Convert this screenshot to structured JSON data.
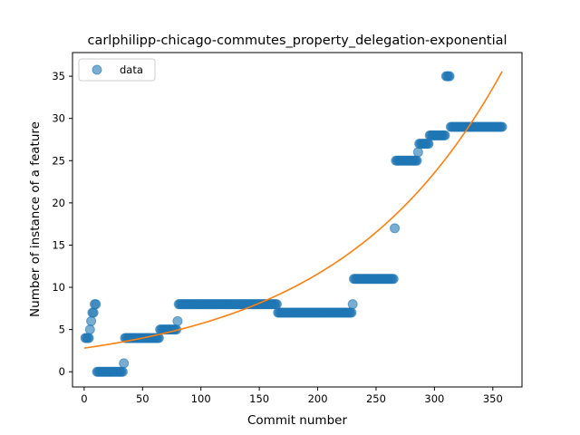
{
  "chart_data": {
    "type": "scatter",
    "title": "carlphilipp-chicago-commutes_property_delegation-exponential",
    "xlabel": "Commit number",
    "ylabel": "Number of instance of a feature",
    "xlim": [
      -10,
      375
    ],
    "ylim": [
      -1.8,
      37.8
    ],
    "xticks": [
      0,
      50,
      100,
      150,
      200,
      250,
      300,
      350
    ],
    "yticks": [
      0,
      5,
      10,
      15,
      20,
      25,
      30,
      35
    ],
    "grid": false,
    "legend": {
      "placement": "top-left",
      "entries": [
        "data"
      ]
    },
    "colors": {
      "data": "#1f77b4",
      "fit": "#ff7f0e"
    },
    "series": [
      {
        "name": "data",
        "kind": "points",
        "segments": [
          {
            "x_start": 1,
            "x_end": 4,
            "y": 4
          },
          {
            "x_start": 5,
            "x_end": 5,
            "y": 5
          },
          {
            "x_start": 6,
            "x_end": 6,
            "y": 6
          },
          {
            "x_start": 7,
            "x_end": 8,
            "y": 7
          },
          {
            "x_start": 9,
            "x_end": 10,
            "y": 8
          },
          {
            "x_start": 11,
            "x_end": 33,
            "y": 0
          },
          {
            "x_start": 34,
            "x_end": 34,
            "y": 1
          },
          {
            "x_start": 35,
            "x_end": 64,
            "y": 4
          },
          {
            "x_start": 65,
            "x_end": 79,
            "y": 5
          },
          {
            "x_start": 80,
            "x_end": 80,
            "y": 6
          },
          {
            "x_start": 81,
            "x_end": 165,
            "y": 8
          },
          {
            "x_start": 166,
            "x_end": 229,
            "y": 7
          },
          {
            "x_start": 230,
            "x_end": 230,
            "y": 8
          },
          {
            "x_start": 231,
            "x_end": 265,
            "y": 11
          },
          {
            "x_start": 266,
            "x_end": 266,
            "y": 17
          },
          {
            "x_start": 267,
            "x_end": 285,
            "y": 25
          },
          {
            "x_start": 286,
            "x_end": 286,
            "y": 26
          },
          {
            "x_start": 287,
            "x_end": 295,
            "y": 27
          },
          {
            "x_start": 296,
            "x_end": 309,
            "y": 28
          },
          {
            "x_start": 310,
            "x_end": 313,
            "y": 35
          },
          {
            "x_start": 314,
            "x_end": 358,
            "y": 29
          }
        ]
      },
      {
        "name": "",
        "kind": "exponential-fit-line",
        "a": 2.8,
        "b": 0.0071,
        "x_range": [
          0,
          358
        ]
      }
    ]
  }
}
